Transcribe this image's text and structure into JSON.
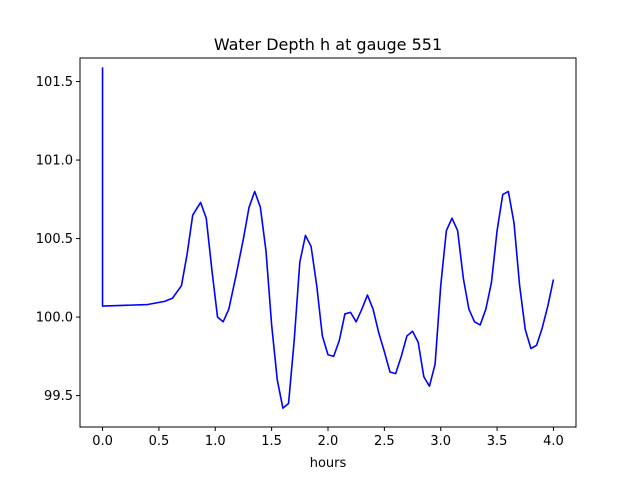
{
  "chart_data": {
    "type": "line",
    "title": "Water Depth h at gauge 551",
    "xlabel": "hours",
    "ylabel": "",
    "xlim": [
      -0.2,
      4.2
    ],
    "ylim": [
      99.3,
      101.65
    ],
    "x_ticks": [
      0.0,
      0.5,
      1.0,
      1.5,
      2.0,
      2.5,
      3.0,
      3.5,
      4.0
    ],
    "x_tick_labels": [
      "0.0",
      "0.5",
      "1.0",
      "1.5",
      "2.0",
      "2.5",
      "3.0",
      "3.5",
      "4.0"
    ],
    "y_ticks": [
      99.5,
      100.0,
      100.5,
      101.0,
      101.5
    ],
    "y_tick_labels": [
      "99.5",
      "100.0",
      "100.5",
      "101.0",
      "101.5"
    ],
    "grid": false,
    "series": [
      {
        "color": "#0000ff",
        "x": [
          0.0,
          0.0,
          0.0,
          0.2,
          0.4,
          0.55,
          0.62,
          0.7,
          0.75,
          0.8,
          0.87,
          0.92,
          0.97,
          1.02,
          1.07,
          1.12,
          1.18,
          1.25,
          1.3,
          1.35,
          1.4,
          1.45,
          1.5,
          1.55,
          1.6,
          1.65,
          1.7,
          1.75,
          1.8,
          1.85,
          1.9,
          1.95,
          2.0,
          2.05,
          2.1,
          2.15,
          2.2,
          2.25,
          2.3,
          2.35,
          2.4,
          2.45,
          2.5,
          2.55,
          2.6,
          2.65,
          2.7,
          2.75,
          2.8,
          2.85,
          2.9,
          2.95,
          3.0,
          3.05,
          3.1,
          3.15,
          3.2,
          3.25,
          3.3,
          3.35,
          3.4,
          3.45,
          3.5,
          3.55,
          3.6,
          3.65,
          3.7,
          3.75,
          3.8,
          3.85,
          3.9,
          3.95,
          4.0
        ],
        "y": [
          101.59,
          100.07,
          100.07,
          100.075,
          100.08,
          100.1,
          100.12,
          100.2,
          100.4,
          100.65,
          100.73,
          100.63,
          100.3,
          100.0,
          99.97,
          100.05,
          100.25,
          100.5,
          100.7,
          100.8,
          100.7,
          100.42,
          99.95,
          99.6,
          99.42,
          99.45,
          99.85,
          100.35,
          100.52,
          100.45,
          100.2,
          99.88,
          99.76,
          99.75,
          99.85,
          100.02,
          100.03,
          99.97,
          100.05,
          100.14,
          100.05,
          99.9,
          99.78,
          99.65,
          99.64,
          99.75,
          99.88,
          99.91,
          99.84,
          99.62,
          99.56,
          99.7,
          100.2,
          100.55,
          100.63,
          100.55,
          100.25,
          100.05,
          99.97,
          99.95,
          100.05,
          100.22,
          100.55,
          100.78,
          100.8,
          100.6,
          100.2,
          99.92,
          99.8,
          99.82,
          99.93,
          100.07,
          100.24
        ]
      }
    ]
  }
}
